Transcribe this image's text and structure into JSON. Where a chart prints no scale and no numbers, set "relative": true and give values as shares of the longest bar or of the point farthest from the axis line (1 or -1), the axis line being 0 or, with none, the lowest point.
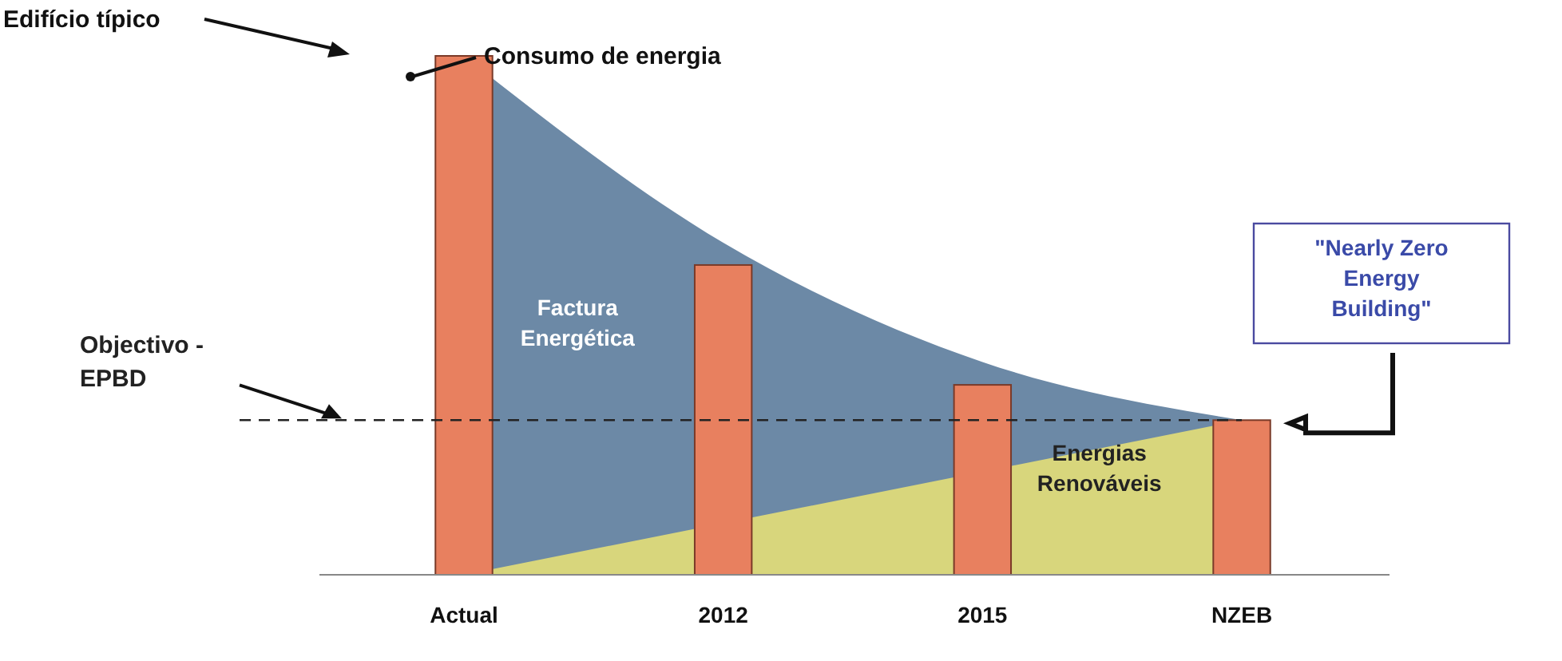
{
  "chart_data": {
    "type": "bar",
    "relative": true,
    "categories": [
      "Actual",
      "2012",
      "2015",
      "NZEB"
    ],
    "series": [
      {
        "name": "Factura Energética",
        "type": "area",
        "color": "#6c89a6",
        "values": [
          1,
          0.64,
          0.41,
          0.298
        ]
      },
      {
        "name": "Energias Renováveis",
        "type": "area",
        "color": "#d8d67c",
        "values": [
          0,
          null,
          null,
          0.298
        ]
      },
      {
        "color": "#e8805f",
        "values": [
          1,
          0.597,
          0.366,
          0.298
        ]
      }
    ],
    "ref_lines": [
      {
        "axis": "y",
        "value": 0.298,
        "label": "Objectivo - EPBD",
        "line_style": "dashed",
        "color": "#222222"
      }
    ],
    "annotations": [
      "Edifício típico",
      "Consumo de energia",
      "\"Nearly Zero Energy Building\""
    ]
  }
}
